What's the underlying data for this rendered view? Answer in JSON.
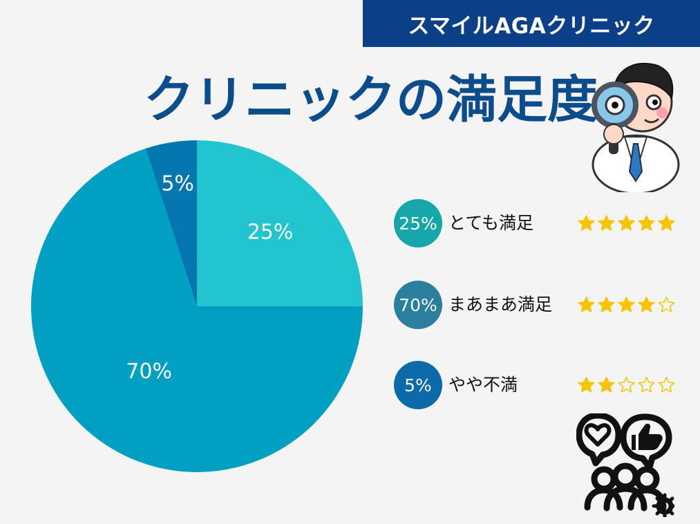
{
  "brand": {
    "name": "スマイルAGAクリニック"
  },
  "page": {
    "title": "クリニックの満足度"
  },
  "chart_data": {
    "type": "pie",
    "title": "",
    "slices": [
      {
        "label": "とても満足",
        "value": 25,
        "display": "25%"
      },
      {
        "label": "まあまあ満足",
        "value": 70,
        "display": "70%"
      },
      {
        "label": "やや不満",
        "value": 5,
        "display": "5%"
      }
    ],
    "colors": [
      "#21c5cf",
      "#00a0c2",
      "#0476b0"
    ],
    "legend_position": "right"
  },
  "legend": {
    "items": [
      {
        "percent": "25%",
        "label": "とても満足",
        "stars": 5,
        "color": "#15a6aa"
      },
      {
        "percent": "70%",
        "label": "まあまあ満足",
        "stars": 4,
        "color": "#2a7f9e"
      },
      {
        "percent": "5%",
        "label": "やや不満",
        "stars": 2,
        "color": "#0b6ba8"
      }
    ]
  },
  "icons": {
    "scientist": "scientist-magnifying-glass-icon",
    "community": "user-feedback-icon"
  },
  "colors": {
    "background": "#f4f4f5",
    "brand_blue": "#0b3f87",
    "title_blue": "#0b4c8c",
    "star_gold": "#f7c400"
  }
}
